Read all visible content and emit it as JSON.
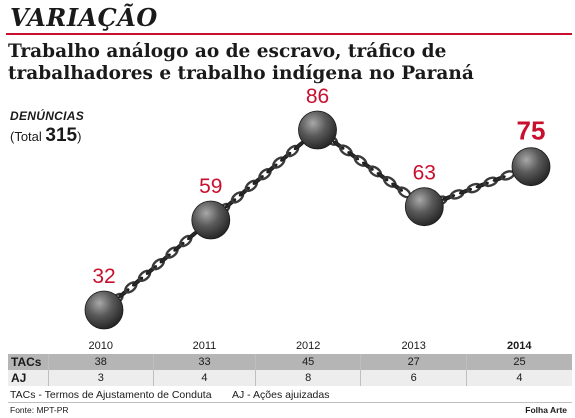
{
  "section": {
    "title": "VARIAÇÃO"
  },
  "headline": "Trabalho análogo ao de escravo, tráfico de trabalhadores e trabalho indígena no Paraná",
  "metric": {
    "label": "DENÚNCIAS",
    "total_prefix": "(Total",
    "total_value": "315",
    "total_suffix": ")"
  },
  "colors": {
    "accent": "#c8102e",
    "ball": "#4a4a4a",
    "chain": "#3a3a3a",
    "tac_row": "#b5b5b5",
    "aj_row": "#ededed"
  },
  "chart_data": {
    "type": "line",
    "title": "Trabalho análogo ao de escravo, tráfico de trabalhadores e trabalho indígena no Paraná",
    "xlabel": "",
    "ylabel": "DENÚNCIAS",
    "categories": [
      "2010",
      "2011",
      "2012",
      "2013",
      "2014"
    ],
    "series": [
      {
        "name": "DENÚNCIAS",
        "values": [
          32,
          59,
          86,
          63,
          75
        ]
      }
    ],
    "data_labels": [
      "32",
      "59",
      "86",
      "63",
      "75"
    ],
    "ylim": [
      20,
      95
    ],
    "grid": false,
    "legend": "none"
  },
  "table": {
    "years": [
      "2010",
      "2011",
      "2012",
      "2013",
      "2014"
    ],
    "rows": [
      {
        "label": "TACs",
        "values": [
          "38",
          "33",
          "45",
          "27",
          "25"
        ]
      },
      {
        "label": "AJ",
        "values": [
          "3",
          "4",
          "8",
          "6",
          "4"
        ]
      }
    ]
  },
  "legend": {
    "tacs": "TACs - Termos de Ajustamento de Conduta",
    "aj": "AJ - Ações ajuizadas"
  },
  "credits": {
    "source": "Fonte: MPT-PR",
    "author": "Folha Arte"
  }
}
